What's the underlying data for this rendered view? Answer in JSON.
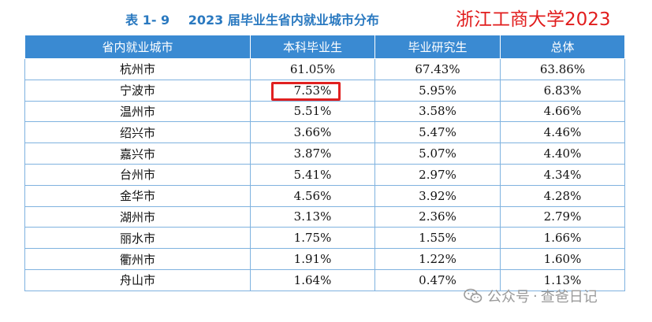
{
  "caption": {
    "number": "表 1- 9",
    "title": "2023 届毕业生省内就业城市分布"
  },
  "stamp": "浙江工商大学2023",
  "table": {
    "headers": [
      "省内就业城市",
      "本科毕业生",
      "毕业研究生",
      "总体"
    ],
    "rows": [
      [
        "杭州市",
        "61.05%",
        "67.43%",
        "63.86%"
      ],
      [
        "宁波市",
        "7.53%",
        "5.95%",
        "6.83%"
      ],
      [
        "温州市",
        "5.51%",
        "3.58%",
        "4.66%"
      ],
      [
        "绍兴市",
        "3.66%",
        "5.47%",
        "4.46%"
      ],
      [
        "嘉兴市",
        "3.87%",
        "5.07%",
        "4.40%"
      ],
      [
        "台州市",
        "5.41%",
        "2.97%",
        "4.34%"
      ],
      [
        "金华市",
        "4.56%",
        "3.92%",
        "4.28%"
      ],
      [
        "湖州市",
        "3.13%",
        "2.36%",
        "2.79%"
      ],
      [
        "丽水市",
        "1.75%",
        "1.55%",
        "1.66%"
      ],
      [
        "衢州市",
        "1.91%",
        "1.22%",
        "1.60%"
      ],
      [
        "舟山市",
        "1.64%",
        "0.47%",
        "1.13%"
      ]
    ],
    "highlighted_cell": "宁波市 本科毕业生 7.53%"
  },
  "watermark": {
    "icon": "wechat-icon",
    "prefix": "公众号",
    "name": "查爸日记"
  },
  "colors": {
    "caption": "#2a79c0",
    "header_bg": "#3a8ad2",
    "border": "#7fb2df",
    "highlight": "#e02020",
    "stamp": "#e11d1d"
  }
}
